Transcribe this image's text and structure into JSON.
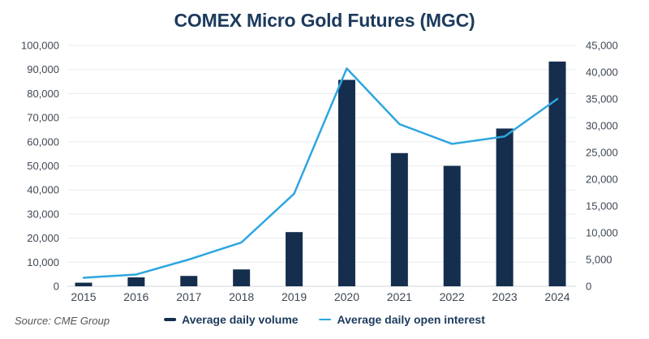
{
  "title": "COMEX Micro Gold Futures (MGC)",
  "source_note": "Source: CME Group",
  "colors": {
    "bar": "#152e4d",
    "line": "#2ca6e0",
    "title_text": "#1c3a5c",
    "axis_text": "#3e4854",
    "legend_text": "#1c3a5c",
    "gridline": "#e9ebee",
    "zero_line": "#d2d6db",
    "source_text": "#54565a",
    "background": "#ffffff"
  },
  "legend": {
    "items": [
      {
        "label": "Average daily volume",
        "series": "volume",
        "swatch": "bar-dash"
      },
      {
        "label": "Average daily open interest",
        "series": "open_interest",
        "swatch": "line-dash"
      }
    ]
  },
  "chart_data": {
    "type": "bar",
    "subtype": "bar+line combo, dual y-axes",
    "title": "COMEX Micro Gold Futures (MGC)",
    "categories": [
      "2015",
      "2016",
      "2017",
      "2018",
      "2019",
      "2020",
      "2021",
      "2022",
      "2023",
      "2024"
    ],
    "series": [
      {
        "name": "Average daily volume",
        "type": "bar",
        "axis": "left",
        "values": [
          1500,
          3700,
          4300,
          7000,
          22500,
          85700,
          55300,
          50000,
          65500,
          93300
        ]
      },
      {
        "name": "Average daily open interest",
        "type": "line",
        "axis": "right",
        "values": [
          1600,
          2200,
          5000,
          8200,
          17300,
          40700,
          30300,
          26600,
          28000,
          35000
        ]
      }
    ],
    "left_axis": {
      "min": 0,
      "max": 100000,
      "step": 10000,
      "tick_labels": [
        "0",
        "10,000",
        "20,000",
        "30,000",
        "40,000",
        "50,000",
        "60,000",
        "70,000",
        "80,000",
        "90,000",
        "100,000"
      ]
    },
    "right_axis": {
      "min": 0,
      "max": 45000,
      "step": 5000,
      "tick_labels": [
        "0",
        "5,000",
        "10,000",
        "15,000",
        "20,000",
        "25,000",
        "30,000",
        "35,000",
        "40,000",
        "45,000"
      ]
    },
    "grid": "horizontal gridlines at left-axis ticks",
    "legend_position": "bottom-center",
    "source": "Source: CME Group"
  }
}
